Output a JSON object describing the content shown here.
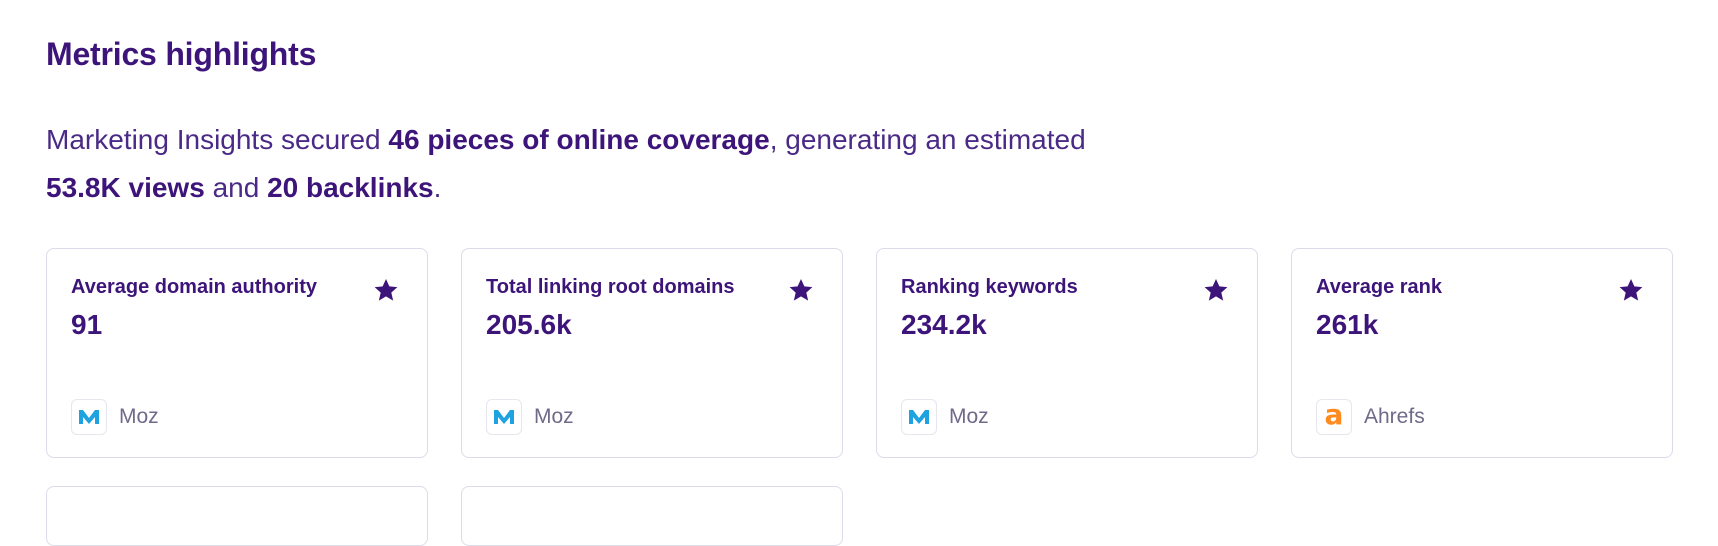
{
  "section_title": "Metrics highlights",
  "summary": {
    "company": "Marketing Insights",
    "secured": "secured",
    "coverage": "46 pieces of online coverage",
    "generating": ", generating an estimated",
    "views": "53.8K views",
    "and": "and",
    "backlinks": "20 backlinks",
    "period": "."
  },
  "cards": [
    {
      "label": "Average domain authority",
      "value": "91",
      "source": "Moz",
      "source_icon": "moz-logo-icon"
    },
    {
      "label": "Total linking root domains",
      "value": "205.6k",
      "source": "Moz",
      "source_icon": "moz-logo-icon"
    },
    {
      "label": "Ranking keywords",
      "value": "234.2k",
      "source": "Moz",
      "source_icon": "moz-logo-icon"
    },
    {
      "label": "Average rank",
      "value": "261k",
      "source": "Ahrefs",
      "source_icon": "ahrefs-logo-icon"
    }
  ],
  "colors": {
    "primary": "#3d1479",
    "moz_blue": "#1ea3e0",
    "ahrefs_orange": "#ff8a1f",
    "card_border": "#dcdbea"
  }
}
